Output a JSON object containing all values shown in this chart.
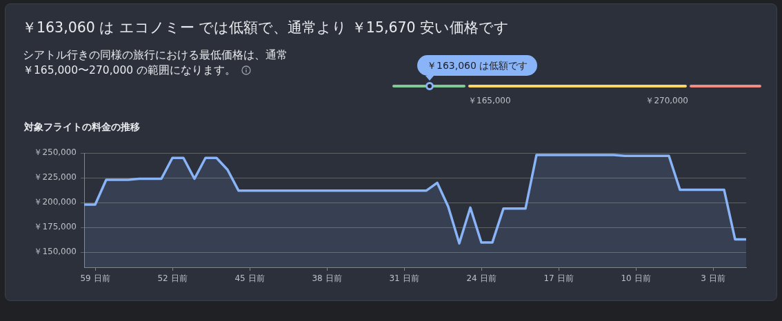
{
  "chart_data": [
    {
      "type": "other",
      "title": "￥163,060 は エコノミー では低額で、通常より ￥15,670 安い価格です",
      "subtitle": "シアトル行きの同様の旅行における最低価格は、通常￥165,000〜270,000 の範囲になります。",
      "annotations": [
        "￥163,060 は低額です",
        "￥165,000",
        "￥270,000"
      ]
    },
    {
      "type": "area",
      "title": "対象フライトの料金の推移",
      "x": [
        -60,
        -59,
        -58,
        -57,
        -56,
        -55,
        -54,
        -53,
        -52,
        -51,
        -50,
        -49,
        -48,
        -47,
        -46,
        -45,
        -44,
        -43,
        -42,
        -41,
        -40,
        -39,
        -38,
        -37,
        -36,
        -35,
        -34,
        -33,
        -32,
        -31,
        -30,
        -29,
        -28,
        -27,
        -26,
        -25,
        -24,
        -23,
        -22,
        -21,
        -20,
        -19,
        -18,
        -17,
        -16,
        -15,
        -14,
        -13,
        -12,
        -11,
        -10,
        -9,
        -8,
        -7,
        -6,
        -5,
        -4,
        -3,
        -2,
        -1,
        0
      ],
      "series": [
        {
          "color": "#8ab4f8",
          "values": [
            198000,
            198000,
            223000,
            223000,
            223000,
            224000,
            224000,
            224000,
            245000,
            245000,
            224000,
            245000,
            245000,
            233000,
            212000,
            212000,
            212000,
            212000,
            212000,
            212000,
            212000,
            212000,
            212000,
            212000,
            212000,
            212000,
            212000,
            212000,
            212000,
            212000,
            212000,
            212000,
            220000,
            196000,
            159000,
            195000,
            160000,
            160000,
            194000,
            194000,
            194000,
            248000,
            248000,
            248000,
            248000,
            248000,
            248000,
            248000,
            248000,
            247000,
            247000,
            247000,
            247000,
            247000,
            213000,
            213000,
            213000,
            213000,
            213000,
            163000,
            163000
          ]
        }
      ],
      "xlim": [
        -60,
        0
      ],
      "xticks": [
        {
          "value": -59,
          "label": "59 日前"
        },
        {
          "value": -52,
          "label": "52 日前"
        },
        {
          "value": -45,
          "label": "45 日前"
        },
        {
          "value": -38,
          "label": "38 日前"
        },
        {
          "value": -31,
          "label": "31 日前"
        },
        {
          "value": -24,
          "label": "24 日前"
        },
        {
          "value": -17,
          "label": "17 日前"
        },
        {
          "value": -10,
          "label": "10 日前"
        },
        {
          "value": -3,
          "label": "3 日前"
        }
      ],
      "ylim": [
        135000,
        250000
      ],
      "yticks": [
        {
          "value": 150000,
          "label": "￥150,000"
        },
        {
          "value": 175000,
          "label": "￥175,000"
        },
        {
          "value": 200000,
          "label": "￥200,000"
        },
        {
          "value": 225000,
          "label": "￥225,000"
        },
        {
          "value": 250000,
          "label": "￥250,000"
        }
      ],
      "grid": "y"
    }
  ]
}
